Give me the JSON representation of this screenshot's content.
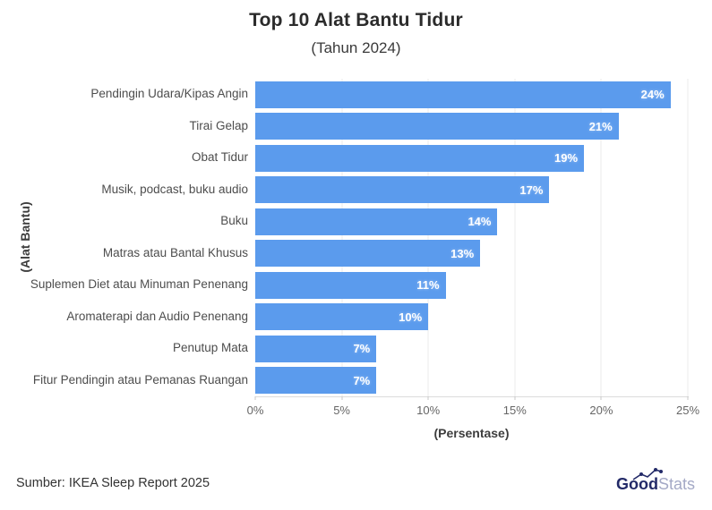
{
  "header": {
    "title": "Top 10 Alat Bantu Tidur",
    "subtitle": "(Tahun 2024)"
  },
  "chart_data": {
    "type": "bar",
    "orientation": "horizontal",
    "title": "Top 10 Alat Bantu Tidur",
    "subtitle": "(Tahun 2024)",
    "categories": [
      "Pendingin Udara/Kipas Angin",
      "Tirai Gelap",
      "Obat Tidur",
      "Musik, podcast, buku audio",
      "Buku",
      "Matras atau Bantal Khusus",
      "Suplemen Diet atau Minuman Penenang",
      "Aromaterapi dan Audio Penenang",
      "Penutup Mata",
      "Fitur Pendingin atau Pemanas Ruangan"
    ],
    "values": [
      24,
      21,
      19,
      17,
      14,
      13,
      11,
      10,
      7,
      7
    ],
    "value_labels": [
      "24%",
      "21%",
      "19%",
      "17%",
      "14%",
      "13%",
      "11%",
      "10%",
      "7%",
      "7%"
    ],
    "xlabel": "(Persentase)",
    "ylabel": "(Alat Bantu)",
    "xlim": [
      0,
      25
    ],
    "x_ticks": [
      "0%",
      "5%",
      "10%",
      "15%",
      "20%",
      "25%"
    ],
    "grid": "vertical-gridlines-on",
    "legend": "none",
    "bar_color": "#5B9BED",
    "value_label_color": "#FFFFFF"
  },
  "footer": {
    "source": "Sumber: IKEA Sleep Report 2025",
    "logo": {
      "bold": "Good",
      "light": "Stats"
    }
  }
}
